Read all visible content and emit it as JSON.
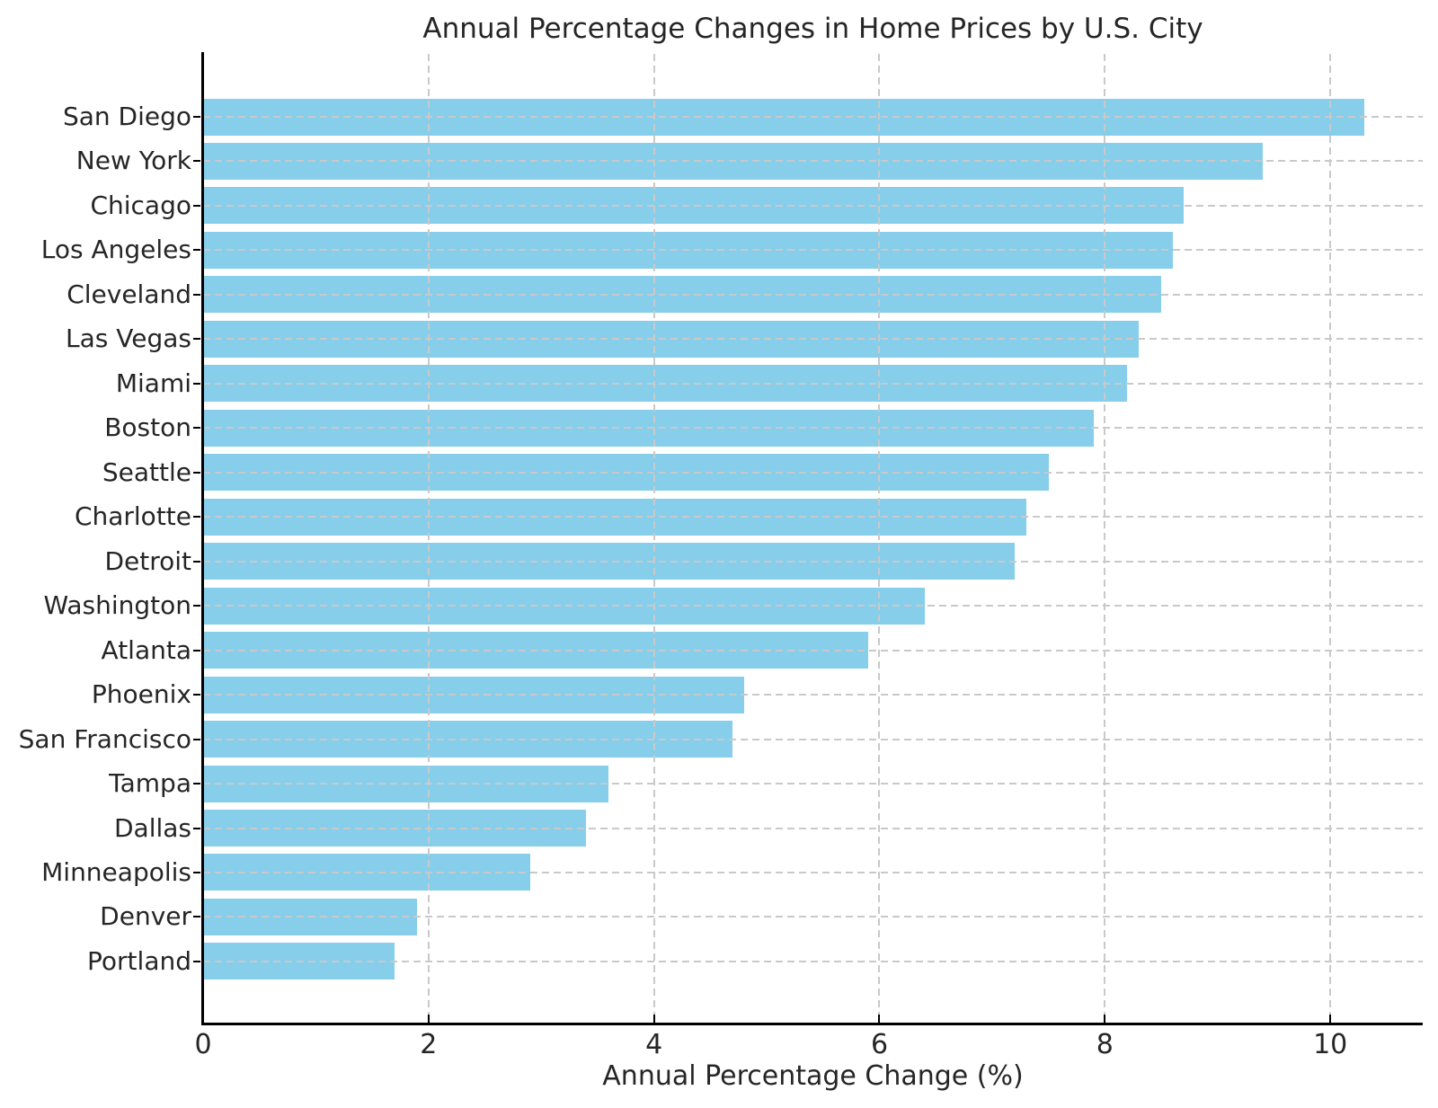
{
  "chart_data": {
    "type": "bar",
    "orientation": "horizontal",
    "title": "Annual Percentage Changes in Home Prices by U.S. City",
    "xlabel": "Annual Percentage Change (%)",
    "categories": [
      "San Diego",
      "New York",
      "Chicago",
      "Los Angeles",
      "Cleveland",
      "Las Vegas",
      "Miami",
      "Boston",
      "Seattle",
      "Charlotte",
      "Detroit",
      "Washington",
      "Atlanta",
      "Phoenix",
      "San Francisco",
      "Tampa",
      "Dallas",
      "Minneapolis",
      "Denver",
      "Portland"
    ],
    "values": [
      10.3,
      9.4,
      8.7,
      8.6,
      8.5,
      8.3,
      8.2,
      7.9,
      7.5,
      7.3,
      7.2,
      6.4,
      5.9,
      4.8,
      4.7,
      3.6,
      3.4,
      2.9,
      1.9,
      1.7
    ],
    "x_ticks": [
      0,
      2,
      4,
      6,
      8,
      10
    ],
    "xlim": [
      0,
      10.82
    ],
    "grid": true,
    "grid_style": "dashed",
    "grid_over_bars": true,
    "legend": false,
    "bar_color": "#87CEEB",
    "grid_color": "#c9c9c9",
    "text_color": "#262626",
    "spine_color": "#000000",
    "background": "#ffffff"
  }
}
